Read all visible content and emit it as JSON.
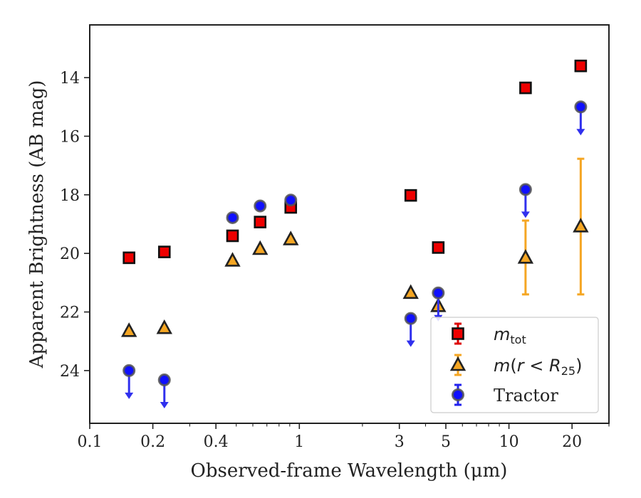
{
  "chart_data": {
    "type": "scatter",
    "title": "",
    "xlabel": "Observed-frame Wavelength (μm)",
    "ylabel": "Apparent Brightness (AB mag)",
    "xscale": "log",
    "xlim": [
      0.1,
      30
    ],
    "ylim": [
      25.8,
      12.2
    ],
    "y_inverted": true,
    "x_ticks": [
      {
        "value": 0.1,
        "label": "0.1"
      },
      {
        "value": 0.2,
        "label": "0.2"
      },
      {
        "value": 0.4,
        "label": "0.4"
      },
      {
        "value": 1,
        "label": "1"
      },
      {
        "value": 3,
        "label": "3"
      },
      {
        "value": 5,
        "label": "5"
      },
      {
        "value": 10,
        "label": "10"
      },
      {
        "value": 20,
        "label": "20"
      }
    ],
    "y_ticks": [
      {
        "value": 14,
        "label": "14"
      },
      {
        "value": 16,
        "label": "16"
      },
      {
        "value": 18,
        "label": "18"
      },
      {
        "value": 20,
        "label": "20"
      },
      {
        "value": 22,
        "label": "22"
      },
      {
        "value": 24,
        "label": "24"
      }
    ],
    "legend_position": "lower-right",
    "series": [
      {
        "key": "mtot",
        "name": "m_tot",
        "marker": "square",
        "color": "#ee0000",
        "edge": "#111111",
        "points": [
          {
            "x": 0.154,
            "y": 20.15
          },
          {
            "x": 0.227,
            "y": 19.95
          },
          {
            "x": 0.48,
            "y": 19.4
          },
          {
            "x": 0.65,
            "y": 18.93
          },
          {
            "x": 0.91,
            "y": 18.43
          },
          {
            "x": 3.4,
            "y": 18.02
          },
          {
            "x": 4.6,
            "y": 19.8
          },
          {
            "x": 12.0,
            "y": 14.35
          },
          {
            "x": 22.0,
            "y": 13.6
          }
        ]
      },
      {
        "key": "mr25",
        "name": "m(r < R25)",
        "marker": "triangle",
        "color": "#f5a623",
        "edge": "#222222",
        "points": [
          {
            "x": 0.154,
            "y": 22.65
          },
          {
            "x": 0.227,
            "y": 22.55
          },
          {
            "x": 0.48,
            "y": 20.25
          },
          {
            "x": 0.65,
            "y": 19.85
          },
          {
            "x": 0.91,
            "y": 19.52
          },
          {
            "x": 3.4,
            "y": 21.35
          },
          {
            "x": 4.6,
            "y": 21.8
          },
          {
            "x": 12.0,
            "y": 20.15,
            "yerr_low": 18.88,
            "yerr_high": 21.4
          },
          {
            "x": 22.0,
            "y": 19.08,
            "yerr_low": 16.77,
            "yerr_high": 21.4
          }
        ]
      },
      {
        "key": "tractor",
        "name": "Tractor",
        "marker": "circle",
        "color": "#1010ff",
        "edge": "#555555",
        "points": [
          {
            "x": 0.154,
            "y": 24.0,
            "upper_limit": true
          },
          {
            "x": 0.227,
            "y": 24.32,
            "upper_limit": true
          },
          {
            "x": 0.48,
            "y": 18.78
          },
          {
            "x": 0.65,
            "y": 18.38
          },
          {
            "x": 0.91,
            "y": 18.18
          },
          {
            "x": 3.4,
            "y": 22.22,
            "upper_limit": true
          },
          {
            "x": 4.6,
            "y": 21.35,
            "upper_limit": true
          },
          {
            "x": 12.0,
            "y": 17.82,
            "upper_limit": true
          },
          {
            "x": 22.0,
            "y": 15.0,
            "upper_limit": true
          }
        ]
      }
    ]
  }
}
